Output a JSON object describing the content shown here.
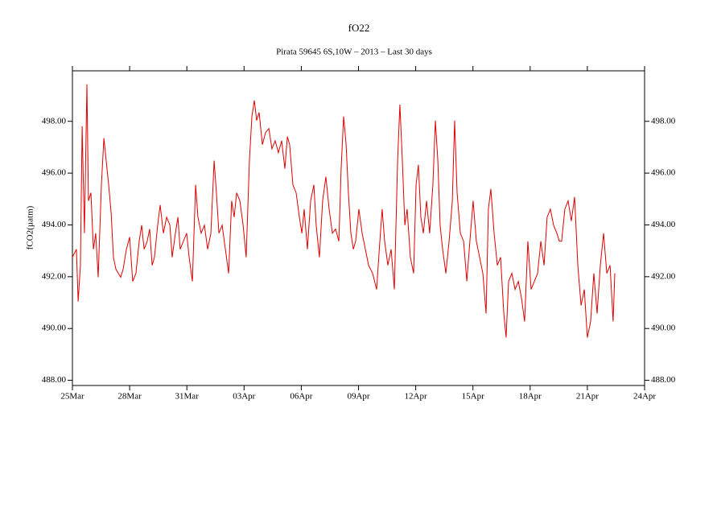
{
  "chart_data": {
    "type": "line",
    "title": "fO22",
    "subtitle": "Pirata 59645 6S,10W – 2013 – Last 30 days",
    "y_label": "fCO2(µatm)",
    "color": "#e00000",
    "xlim": [
      0,
      30
    ],
    "xticks": [
      {
        "value": 0,
        "label": "25Mar"
      },
      {
        "value": 3,
        "label": "28Mar"
      },
      {
        "value": 6,
        "label": "31Mar"
      },
      {
        "value": 9,
        "label": "03Apr"
      },
      {
        "value": 12,
        "label": "06Apr"
      },
      {
        "value": 15,
        "label": "09Apr"
      },
      {
        "value": 18,
        "label": "12Apr"
      },
      {
        "value": 21,
        "label": "15Apr"
      },
      {
        "value": 24,
        "label": "18Apr"
      },
      {
        "value": 27,
        "label": "21Apr"
      },
      {
        "value": 30,
        "label": "24Apr"
      }
    ],
    "ylim": [
      487.8,
      499.95
    ],
    "yticks": [
      {
        "value": 488,
        "label": "488.00"
      },
      {
        "value": 490,
        "label": "490.00"
      },
      {
        "value": 492,
        "label": "492.00"
      },
      {
        "value": 494,
        "label": "494.00"
      },
      {
        "value": 496,
        "label": "496.00"
      },
      {
        "value": 498,
        "label": "498.00"
      }
    ],
    "x": [
      0,
      0.21,
      0.3,
      0.42,
      0.51,
      0.63,
      0.76,
      0.84,
      0.97,
      1.1,
      1.22,
      1.35,
      1.52,
      1.65,
      1.77,
      1.9,
      2.03,
      2.15,
      2.28,
      2.41,
      2.53,
      2.66,
      2.83,
      3.0,
      3.16,
      3.33,
      3.5,
      3.63,
      3.76,
      3.92,
      4.05,
      4.18,
      4.3,
      4.47,
      4.6,
      4.77,
      4.94,
      5.11,
      5.23,
      5.4,
      5.53,
      5.65,
      5.82,
      5.99,
      6.12,
      6.29,
      6.46,
      6.58,
      6.75,
      6.92,
      7.09,
      7.26,
      7.43,
      7.55,
      7.68,
      7.85,
      8.02,
      8.19,
      8.35,
      8.48,
      8.61,
      8.78,
      8.95,
      9.11,
      9.28,
      9.41,
      9.54,
      9.66,
      9.79,
      9.96,
      10.13,
      10.3,
      10.46,
      10.63,
      10.8,
      10.97,
      11.14,
      11.27,
      11.39,
      11.56,
      11.73,
      11.9,
      12.03,
      12.15,
      12.32,
      12.49,
      12.66,
      12.78,
      12.95,
      13.12,
      13.29,
      13.46,
      13.63,
      13.8,
      13.97,
      14.09,
      14.22,
      14.35,
      14.47,
      14.6,
      14.73,
      14.85,
      15.02,
      15.19,
      15.36,
      15.53,
      15.74,
      15.95,
      16.12,
      16.24,
      16.37,
      16.54,
      16.71,
      16.88,
      17.05,
      17.17,
      17.3,
      17.43,
      17.55,
      17.72,
      17.89,
      18.02,
      18.14,
      18.27,
      18.4,
      18.57,
      18.73,
      18.9,
      19.03,
      19.16,
      19.28,
      19.41,
      19.58,
      19.75,
      19.92,
      20.04,
      20.17,
      20.34,
      20.51,
      20.68,
      20.84,
      21.01,
      21.18,
      21.35,
      21.52,
      21.69,
      21.81,
      21.94,
      22.11,
      22.28,
      22.45,
      22.62,
      22.74,
      22.87,
      23.04,
      23.21,
      23.38,
      23.54,
      23.71,
      23.88,
      24.05,
      24.22,
      24.39,
      24.56,
      24.73,
      24.89,
      25.06,
      25.23,
      25.4,
      25.53,
      25.65,
      25.82,
      25.99,
      26.16,
      26.33,
      26.5,
      26.67,
      26.84,
      27.0,
      27.17,
      27.34,
      27.51,
      27.68,
      27.85,
      28.02,
      28.19,
      28.35,
      28.44
    ],
    "values": [
      492.75,
      493.06,
      491.04,
      492.44,
      497.81,
      493.68,
      499.43,
      494.93,
      495.24,
      493.06,
      493.68,
      491.98,
      495.55,
      497.35,
      496.48,
      495.55,
      494.46,
      492.75,
      492.29,
      492.13,
      491.98,
      492.29,
      493.06,
      493.53,
      491.82,
      492.13,
      493.37,
      493.99,
      493.06,
      493.37,
      493.84,
      492.44,
      492.75,
      493.99,
      494.77,
      493.68,
      494.3,
      493.99,
      492.75,
      493.68,
      494.3,
      493.06,
      493.37,
      493.68,
      492.75,
      491.82,
      495.55,
      494.3,
      493.68,
      493.99,
      493.06,
      493.68,
      496.48,
      495.24,
      493.68,
      493.99,
      493.06,
      492.13,
      494.93,
      494.3,
      495.24,
      494.93,
      493.99,
      492.75,
      496.48,
      498.19,
      498.81,
      498.03,
      498.34,
      497.1,
      497.57,
      497.72,
      496.94,
      497.25,
      496.79,
      497.25,
      496.17,
      497.41,
      497.1,
      495.55,
      495.24,
      494.3,
      493.68,
      494.61,
      493.06,
      494.93,
      495.55,
      493.99,
      492.75,
      494.93,
      495.86,
      494.61,
      493.68,
      493.84,
      493.37,
      496.17,
      498.19,
      497.1,
      495.24,
      493.68,
      493.06,
      493.37,
      494.61,
      493.68,
      493.06,
      492.44,
      492.13,
      491.51,
      493.37,
      494.61,
      493.37,
      492.44,
      493.06,
      491.51,
      496.48,
      498.65,
      496.48,
      493.99,
      494.61,
      492.75,
      492.13,
      495.55,
      496.32,
      494.3,
      493.68,
      494.93,
      493.68,
      495.55,
      498.03,
      496.48,
      493.99,
      493.06,
      492.13,
      493.37,
      494.93,
      498.03,
      495.24,
      493.68,
      493.37,
      491.82,
      493.37,
      494.93,
      493.37,
      492.75,
      492.13,
      490.58,
      494.61,
      495.39,
      493.68,
      492.44,
      492.75,
      490.58,
      489.65,
      491.82,
      492.13,
      491.51,
      491.82,
      491.2,
      490.27,
      493.37,
      491.51,
      491.82,
      492.13,
      493.37,
      492.44,
      494.3,
      494.61,
      493.99,
      493.68,
      493.37,
      493.37,
      494.61,
      494.93,
      494.15,
      495.08,
      492.44,
      490.89,
      491.51,
      489.65,
      490.27,
      492.13,
      490.58,
      492.44,
      493.68,
      492.13,
      492.44,
      490.27,
      492.13
    ]
  }
}
